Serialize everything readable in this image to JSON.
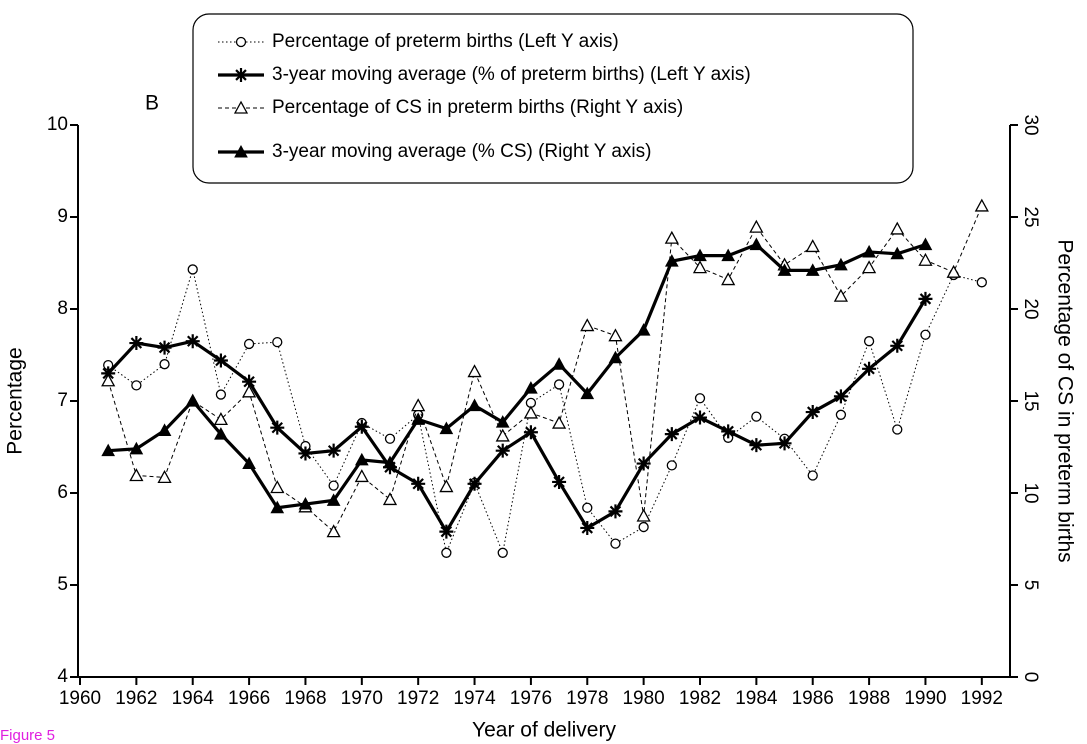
{
  "chart_data": {
    "type": "line",
    "panel_label": "B",
    "figure_label": "Figure 5",
    "xlabel": "Year of delivery",
    "ylabel": "Percentage",
    "y2label": "Percentage of CS in preterm births",
    "xlim": [
      1960,
      1993
    ],
    "xticks": [
      1960,
      1962,
      1964,
      1966,
      1968,
      1970,
      1972,
      1974,
      1976,
      1978,
      1980,
      1982,
      1984,
      1986,
      1988,
      1990,
      1992
    ],
    "ylim": [
      4,
      10
    ],
    "yticks": [
      4,
      5,
      6,
      7,
      8,
      9,
      10
    ],
    "y2lim": [
      0,
      30
    ],
    "y2ticks": [
      0,
      5,
      10,
      15,
      20,
      25,
      30
    ],
    "x": [
      1961,
      1962,
      1963,
      1964,
      1965,
      1966,
      1967,
      1968,
      1969,
      1970,
      1971,
      1972,
      1973,
      1974,
      1975,
      1976,
      1977,
      1978,
      1979,
      1980,
      1981,
      1982,
      1983,
      1984,
      1985,
      1986,
      1987,
      1988,
      1989,
      1990,
      1991,
      1992
    ],
    "series": [
      {
        "name": "Percentage of preterm births (Left Y axis)",
        "color": "#000000",
        "marker": "circle",
        "style": "dotted",
        "values": [
          7.39,
          7.17,
          7.4,
          8.43,
          7.07,
          7.62,
          7.64,
          6.51,
          6.08,
          6.76,
          6.59,
          6.85,
          5.35,
          6.11,
          5.35,
          6.98,
          7.18,
          5.84,
          5.45,
          5.63,
          6.3,
          7.03,
          6.6,
          6.83,
          6.59,
          6.19,
          6.85,
          7.65,
          6.69,
          7.72,
          8.37,
          8.29
        ]
      },
      {
        "name": "3-year moving average (% of preterm births) (Left Y axis)",
        "color": "#000000",
        "marker": "star",
        "style": "thick",
        "values": [
          7.3,
          7.63,
          7.58,
          7.65,
          7.44,
          7.21,
          6.71,
          6.43,
          6.46,
          6.72,
          6.28,
          6.1,
          5.58,
          6.1,
          6.46,
          6.66,
          6.12,
          5.62,
          5.8,
          6.32,
          6.64,
          6.82,
          6.67,
          6.52,
          6.54,
          6.88,
          7.05,
          7.35,
          7.6,
          8.11,
          null,
          null
        ]
      },
      {
        "name": "Percentage of CS in preterm births (Right Y axis)",
        "color": "#000000",
        "marker": "triangle-open",
        "style": "dashed",
        "axis": "y2",
        "values": [
          16.1,
          10.95,
          10.85,
          15.0,
          14.0,
          15.5,
          10.3,
          9.25,
          7.9,
          10.9,
          9.65,
          14.75,
          10.35,
          16.6,
          13.1,
          14.35,
          13.8,
          19.1,
          18.55,
          8.75,
          23.85,
          22.25,
          21.6,
          24.45,
          22.4,
          23.4,
          20.7,
          22.25,
          24.35,
          22.65,
          22.0,
          25.6
        ]
      },
      {
        "name": "3-year moving average (% CS) (Right Y axis)",
        "color": "#000000",
        "marker": "triangle-filled",
        "style": "thick",
        "axis": "y2",
        "values": [
          12.3,
          12.4,
          13.4,
          15.0,
          13.2,
          11.6,
          9.2,
          9.4,
          9.6,
          11.8,
          11.65,
          14.0,
          13.5,
          14.75,
          13.85,
          15.7,
          17.0,
          15.4,
          17.35,
          18.85,
          22.6,
          22.9,
          22.9,
          23.5,
          22.1,
          22.1,
          22.4,
          23.1,
          23.0,
          23.5,
          null,
          null
        ]
      }
    ]
  }
}
